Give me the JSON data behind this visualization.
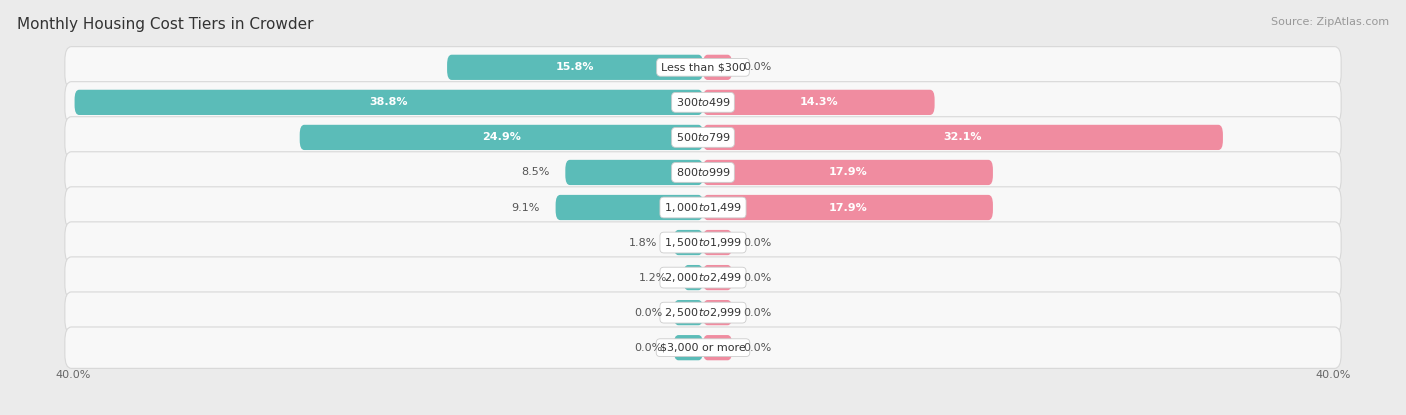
{
  "title": "Monthly Housing Cost Tiers in Crowder",
  "source": "Source: ZipAtlas.com",
  "categories": [
    "Less than $300",
    "$300 to $499",
    "$500 to $799",
    "$800 to $999",
    "$1,000 to $1,499",
    "$1,500 to $1,999",
    "$2,000 to $2,499",
    "$2,500 to $2,999",
    "$3,000 or more"
  ],
  "owner_values": [
    15.8,
    38.8,
    24.9,
    8.5,
    9.1,
    1.8,
    1.2,
    0.0,
    0.0
  ],
  "renter_values": [
    0.0,
    14.3,
    32.1,
    17.9,
    17.9,
    0.0,
    0.0,
    0.0,
    0.0
  ],
  "owner_color": "#5bbcb8",
  "renter_color": "#f08ca0",
  "axis_max": 40.0,
  "bg_color": "#ebebeb",
  "bar_bg_color": "#f8f8f8",
  "bar_bg_edge_color": "#d8d8d8",
  "bar_height": 0.72,
  "title_fontsize": 11,
  "source_fontsize": 8,
  "label_fontsize": 8,
  "axis_label_fontsize": 8,
  "category_fontsize": 8
}
